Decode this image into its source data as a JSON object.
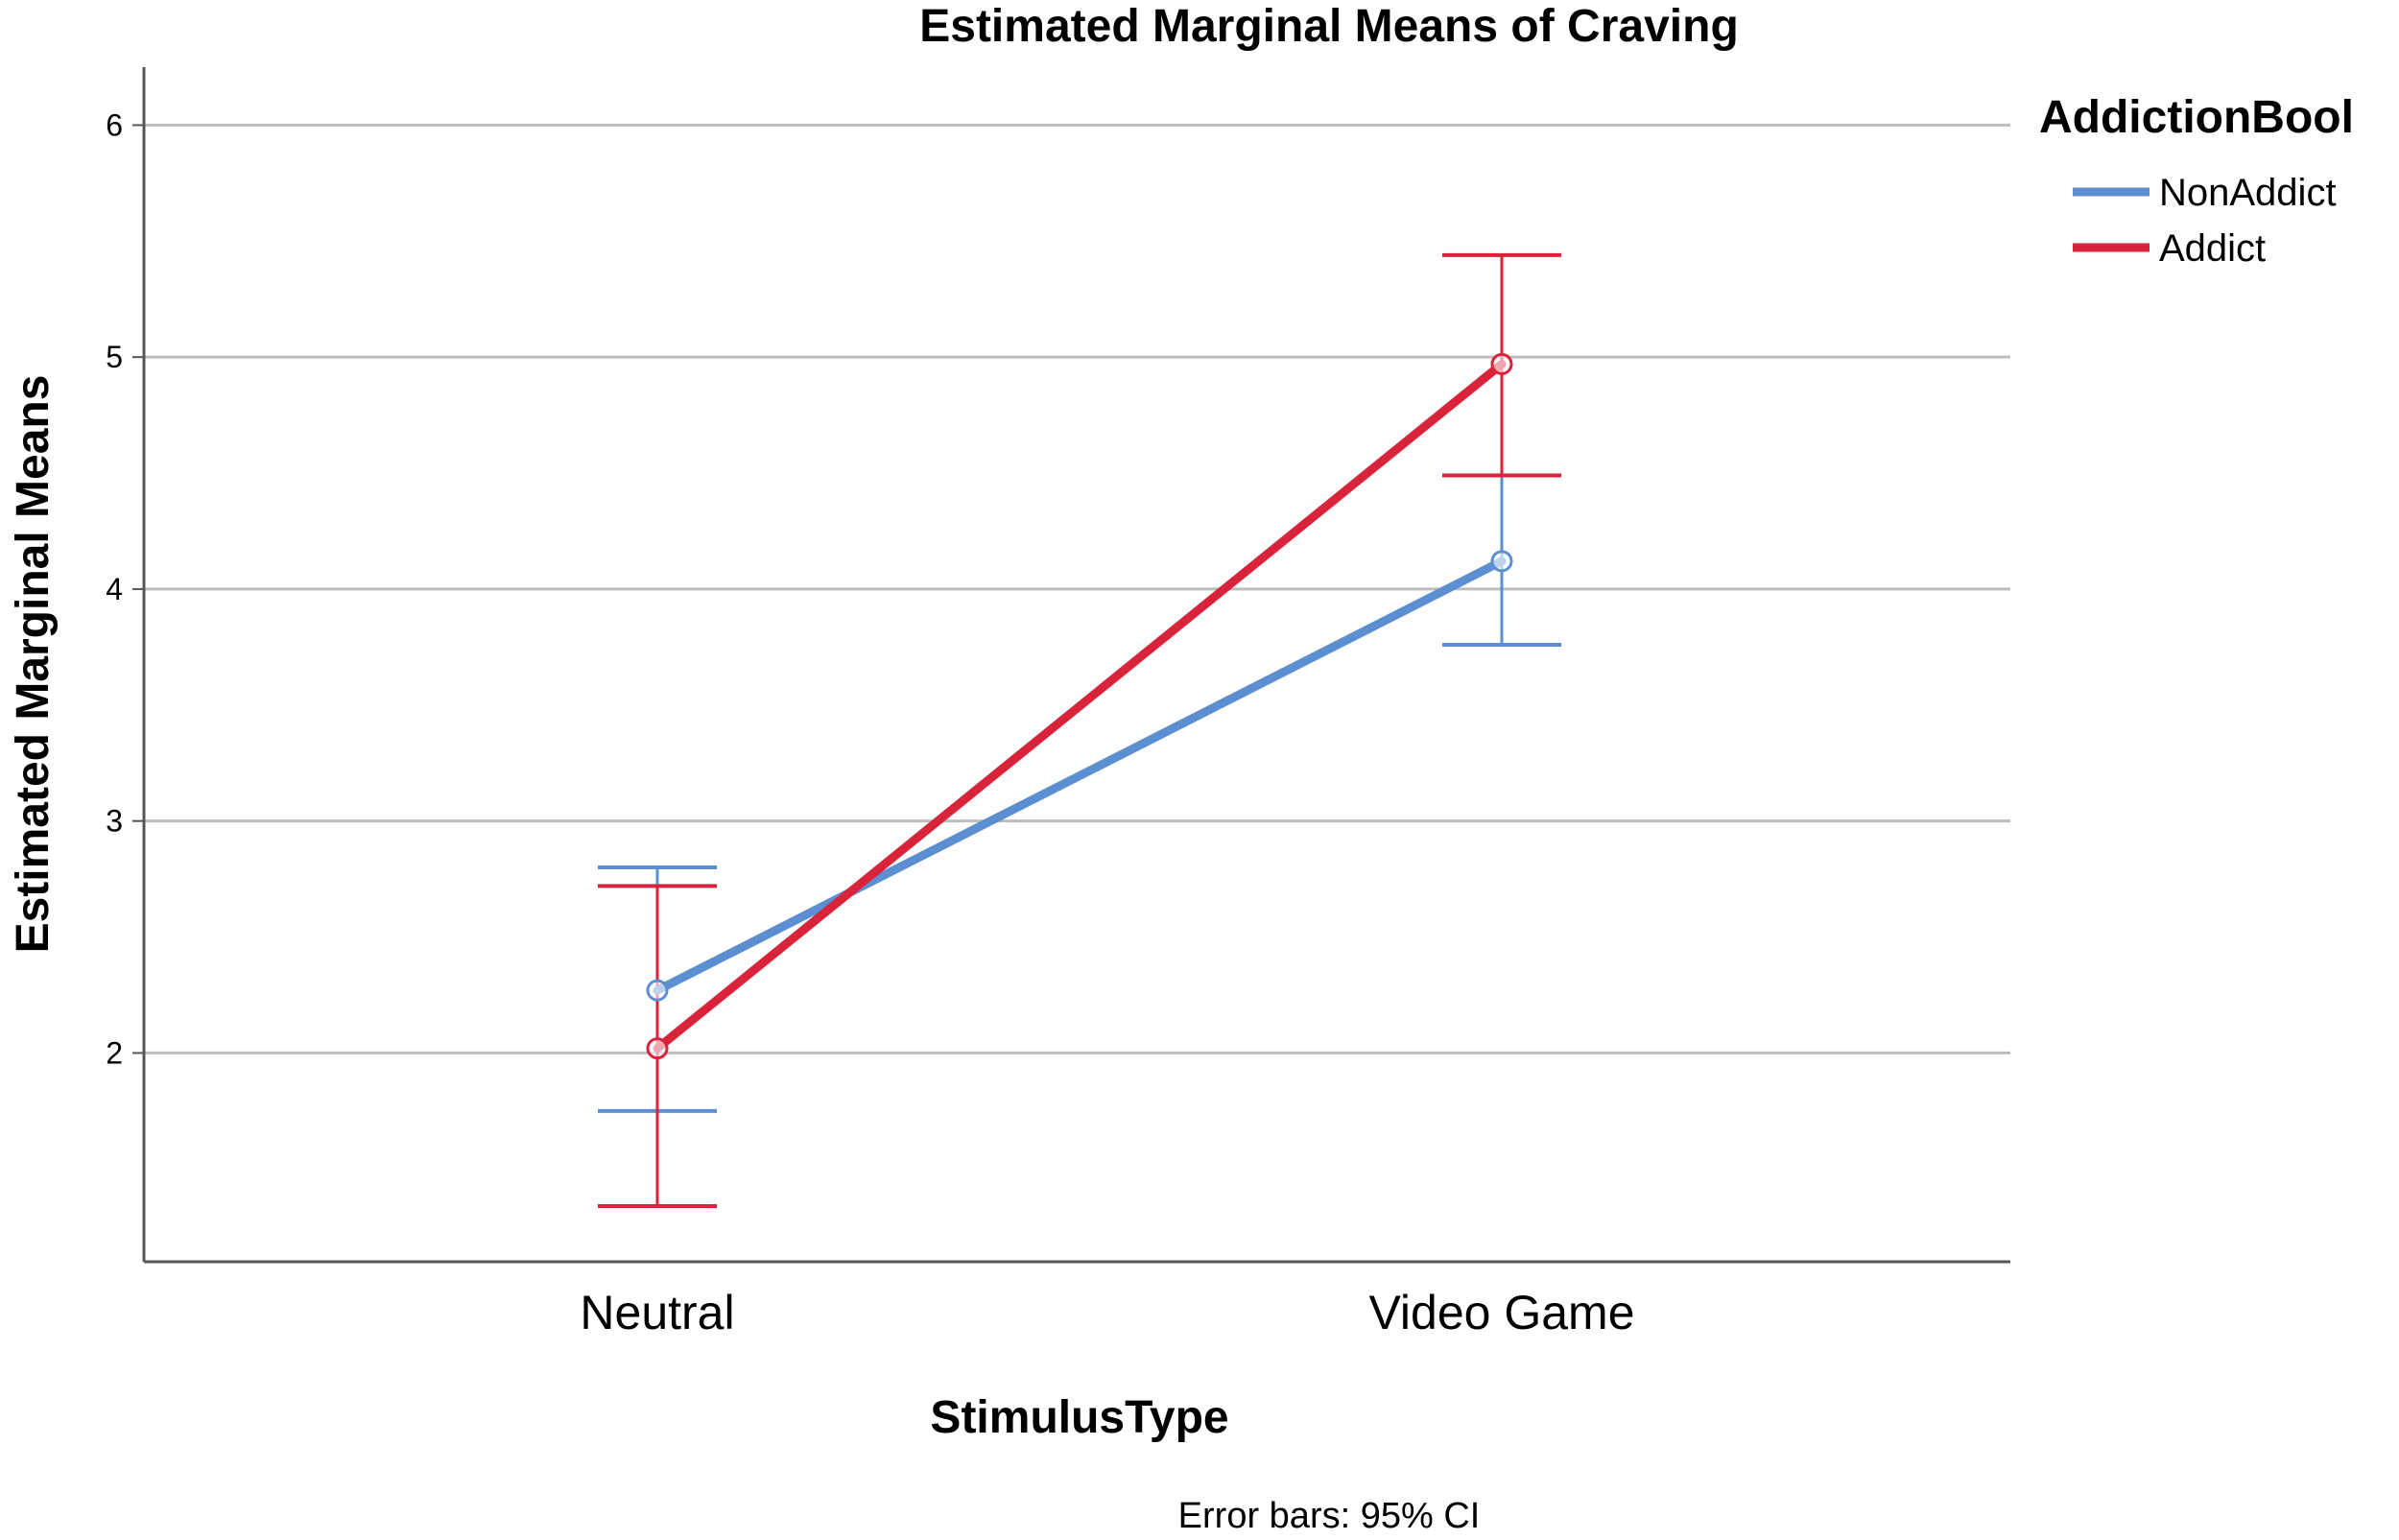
{
  "chart_data": {
    "type": "line",
    "title": "Estimated Marginal Means of Craving",
    "xlabel": "StimulusType",
    "ylabel": "Estimated Marginal Means",
    "categories": [
      "Neutral",
      "Video Game"
    ],
    "ylim": [
      1.1,
      6.25
    ],
    "yticks": [
      2,
      3,
      4,
      5,
      6
    ],
    "grid": true,
    "legend_title": "AddictionBool",
    "legend_position": "top-right, outside plot",
    "footnote": "Error bars: 95% CI",
    "series": [
      {
        "name": "NonAddict",
        "color": "#5b8fd1",
        "values": [
          2.27,
          4.12
        ],
        "ci_low": [
          1.75,
          3.76
        ],
        "ci_high": [
          2.8,
          4.49
        ]
      },
      {
        "name": "Addict",
        "color": "#d9233a",
        "values": [
          2.02,
          4.97
        ],
        "ci_low": [
          1.34,
          4.49
        ],
        "ci_high": [
          2.72,
          5.44
        ]
      }
    ]
  }
}
